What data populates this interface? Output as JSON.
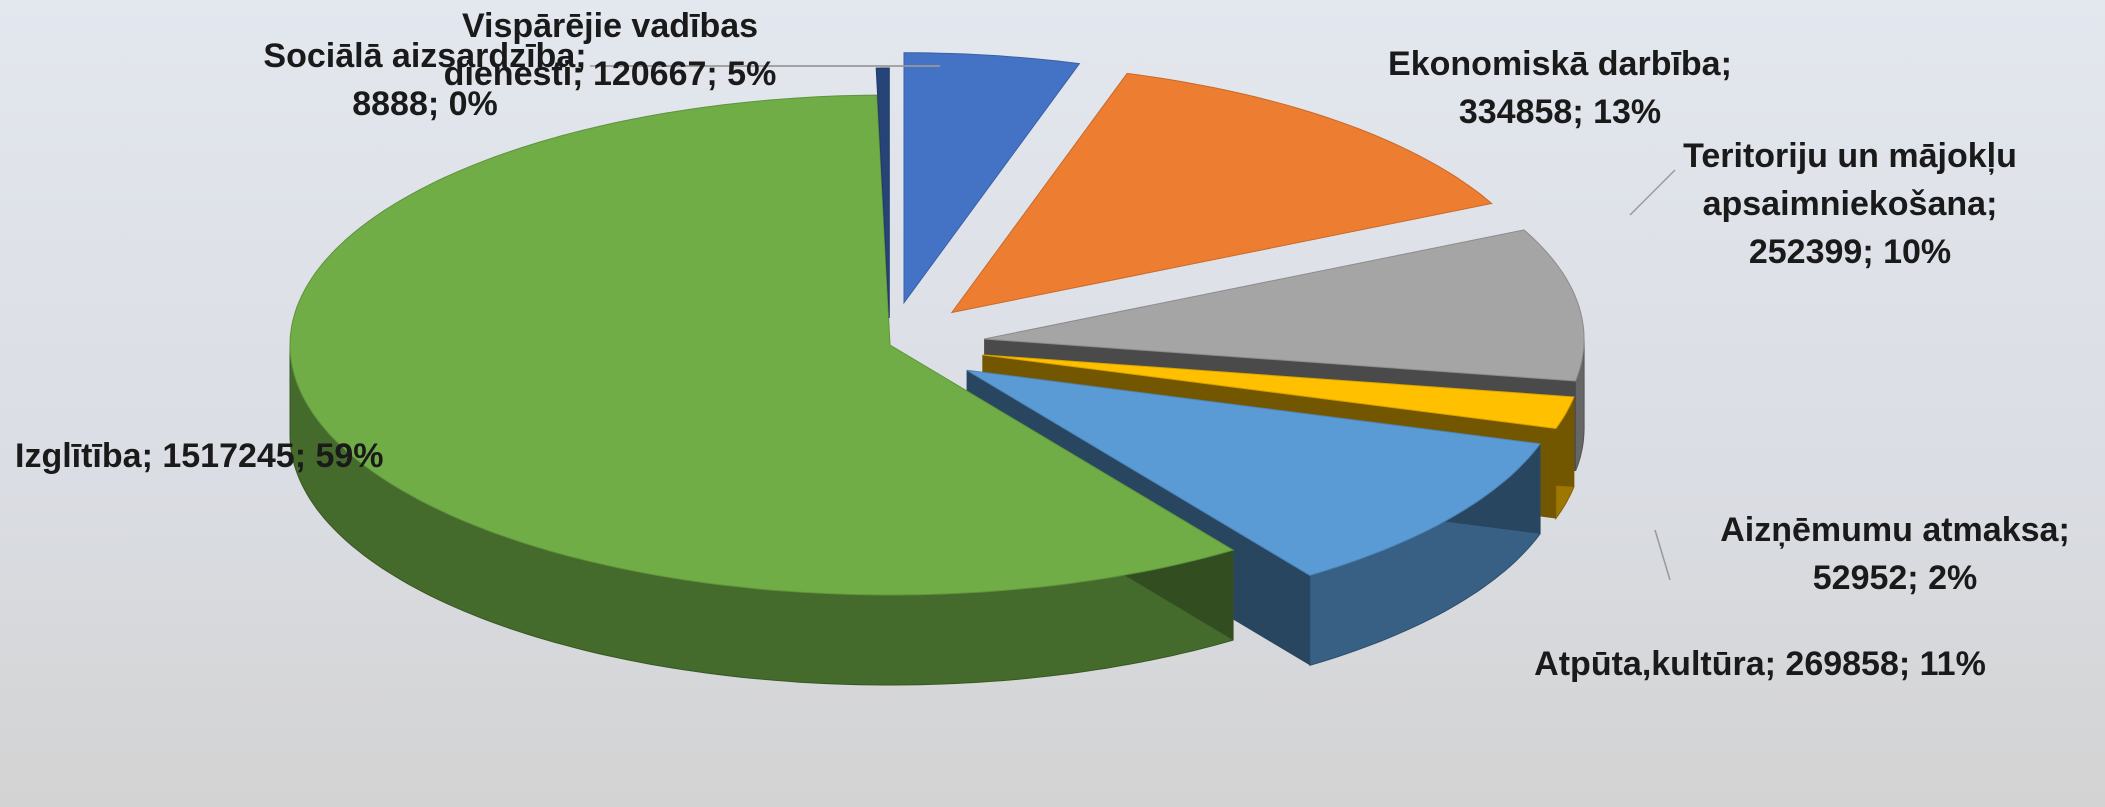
{
  "chart_data": {
    "type": "pie",
    "categories": [
      "Vispārējie vadības dienesti",
      "Ekonomiskā darbība",
      "Teritoriju un mājokļu apsaimniekošana",
      "Aizņēmumu atmaksa",
      "Atpūta,kultūra",
      "Izglītība",
      "Sociālā aizsardzība"
    ],
    "values": [
      120667,
      334858,
      252399,
      52952,
      269858,
      1517245,
      8888
    ],
    "label_separator": "; ",
    "value_labels": [
      "120667; 5%",
      "334858; 13%",
      "252399; 10%",
      "52952; 2%",
      "269858; 11%",
      "1517245; 59%",
      "8888; 0%"
    ],
    "colors": [
      "#4472c4",
      "#ed7d31",
      "#a5a5a5",
      "#ffc000",
      "#5b9bd5",
      "#70ad47",
      "#264478"
    ]
  }
}
